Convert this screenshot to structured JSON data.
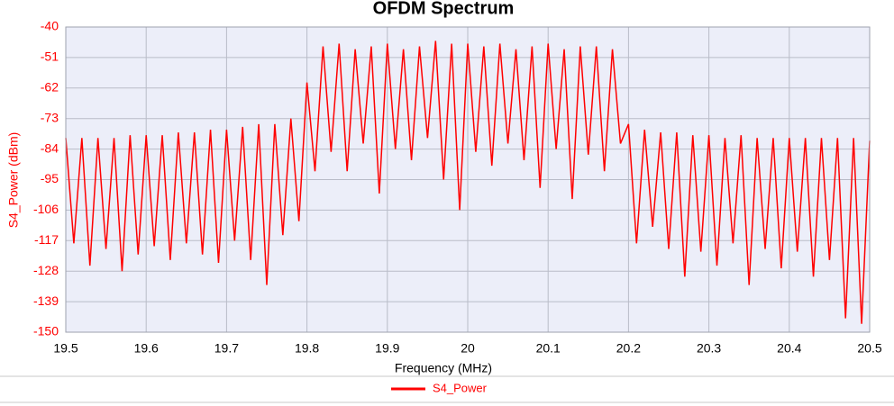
{
  "chart_data": {
    "type": "line",
    "title": "OFDM Spectrum",
    "x_label": "Frequency (MHz)",
    "y_label": "S4_Power (dBm)",
    "xlim": [
      19.5,
      20.5
    ],
    "ylim": [
      -150,
      -40
    ],
    "xticks": [
      19.5,
      19.6,
      19.7,
      19.8,
      19.9,
      20,
      20.1,
      20.2,
      20.3,
      20.4,
      20.5
    ],
    "yticks": [
      -40,
      -51,
      -62,
      -73,
      -84,
      -95,
      -106,
      -117,
      -128,
      -139,
      -150
    ],
    "grid": true,
    "legend": "bottom",
    "x": [
      19.5,
      19.51,
      19.52,
      19.53,
      19.54,
      19.55,
      19.56,
      19.57,
      19.58,
      19.59,
      19.6,
      19.61,
      19.62,
      19.63,
      19.64,
      19.65,
      19.66,
      19.67,
      19.68,
      19.69,
      19.7,
      19.71,
      19.72,
      19.73,
      19.74,
      19.75,
      19.76,
      19.77,
      19.78,
      19.79,
      19.8,
      19.81,
      19.82,
      19.83,
      19.84,
      19.85,
      19.86,
      19.87,
      19.88,
      19.89,
      19.9,
      19.91,
      19.92,
      19.93,
      19.94,
      19.95,
      19.96,
      19.97,
      19.98,
      19.99,
      20,
      20.01,
      20.02,
      20.03,
      20.04,
      20.05,
      20.06,
      20.07,
      20.08,
      20.09,
      20.1,
      20.11,
      20.12,
      20.13,
      20.14,
      20.15,
      20.16,
      20.17,
      20.18,
      20.19,
      20.2,
      20.21,
      20.22,
      20.23,
      20.24,
      20.25,
      20.26,
      20.27,
      20.28,
      20.29,
      20.3,
      20.31,
      20.32,
      20.33,
      20.34,
      20.35,
      20.36,
      20.37,
      20.38,
      20.39,
      20.4,
      20.41,
      20.42,
      20.43,
      20.44,
      20.45,
      20.46,
      20.47,
      20.48,
      20.49,
      20.5
    ],
    "series": [
      {
        "name": "S4_Power",
        "color": "#ff0000",
        "values": [
          -80,
          -118,
          -80,
          -126,
          -80,
          -120,
          -80,
          -128,
          -79,
          -122,
          -79,
          -119,
          -79,
          -124,
          -78,
          -118,
          -78,
          -122,
          -77,
          -125,
          -77,
          -117,
          -76,
          -124,
          -75,
          -133,
          -75,
          -115,
          -73,
          -110,
          -60,
          -92,
          -47,
          -85,
          -46,
          -92,
          -48,
          -82,
          -47,
          -100,
          -46,
          -84,
          -48,
          -88,
          -47,
          -80,
          -45,
          -95,
          -46,
          -106,
          -46,
          -85,
          -47,
          -90,
          -46,
          -82,
          -48,
          -88,
          -47,
          -98,
          -46,
          -84,
          -48,
          -102,
          -47,
          -86,
          -47,
          -92,
          -48,
          -82,
          -75,
          -118,
          -77,
          -112,
          -78,
          -120,
          -78,
          -130,
          -79,
          -121,
          -79,
          -126,
          -80,
          -118,
          -79,
          -133,
          -80,
          -120,
          -80,
          -127,
          -80,
          -121,
          -80,
          -130,
          -80,
          -124,
          -80,
          -145,
          -80,
          -147,
          -81
        ]
      }
    ]
  }
}
